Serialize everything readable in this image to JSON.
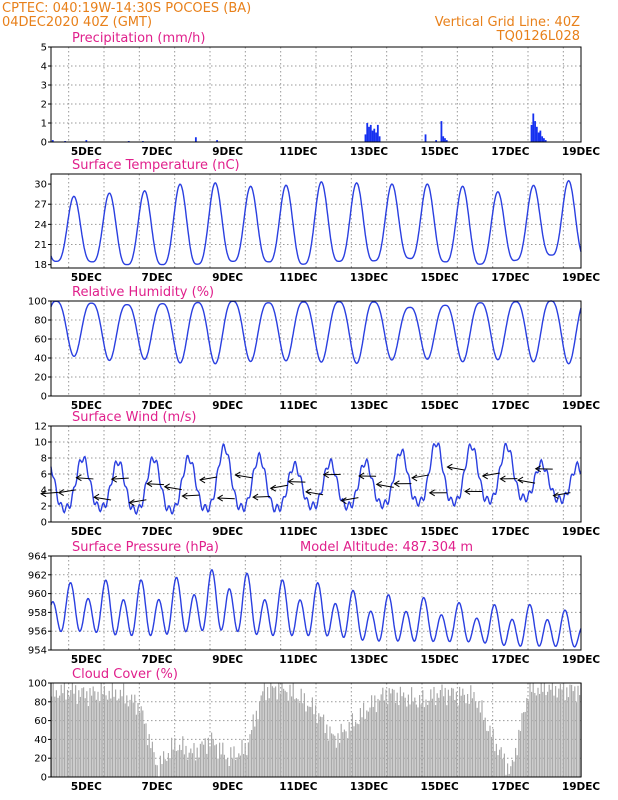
{
  "header": {
    "line1_left": "CPTEC:   040:19W-14:30S   POCOES (BA)",
    "line2_left": "04DEC2020 40Z (GMT)",
    "line1_right": "Vertical Grid Line: 40Z",
    "line2_right": "TQ0126L028"
  },
  "date_labels": [
    "5DEC",
    "7DEC",
    "9DEC",
    "11DEC",
    "13DEC",
    "15DEC",
    "17DEC",
    "19DEC"
  ],
  "colors": {
    "header": "#e8801a",
    "panel_title": "#e0208c",
    "series": "#2a3fe0",
    "bars": "#1530f0",
    "cloud": "#aaaaaa"
  },
  "chart_data": [
    {
      "id": "precip",
      "type": "bar",
      "title": "Precipitation (mm/h)",
      "ylim": [
        0,
        5
      ],
      "yticks": [
        0,
        1,
        2,
        3,
        4,
        5
      ],
      "x_range_days": [
        4,
        19
      ],
      "x": [
        4.05,
        4.4,
        5.0,
        6.2,
        6.6,
        8.1,
        8.7,
        12.9,
        12.95,
        13.0,
        13.05,
        13.1,
        13.15,
        13.2,
        13.25,
        13.3,
        14.6,
        14.9,
        15.05,
        15.1,
        15.15,
        15.2,
        17.6,
        17.65,
        17.7,
        17.75,
        17.8,
        17.85,
        17.9,
        17.95,
        18.0
      ],
      "values": [
        0.1,
        0.05,
        0.1,
        0.05,
        0.05,
        0.25,
        0.1,
        0.4,
        1.0,
        0.8,
        0.9,
        0.6,
        0.7,
        0.5,
        0.9,
        0.3,
        0.4,
        0.1,
        1.1,
        0.3,
        0.2,
        0.1,
        0.9,
        1.5,
        1.1,
        0.8,
        0.5,
        0.6,
        0.3,
        0.2,
        0.1
      ]
    },
    {
      "id": "temp",
      "type": "line",
      "title": "Surface Temperature (nC)",
      "ylim": [
        17.5,
        31.5
      ],
      "yticks": [
        18,
        21,
        24,
        27,
        30
      ],
      "x_range_days": [
        4,
        19
      ],
      "diurnal": {
        "min_day": [
          4,
          5,
          6,
          7,
          8,
          9,
          10,
          11,
          12,
          13,
          14,
          15,
          16,
          17,
          18,
          19
        ],
        "min": [
          18.5,
          18.5,
          18.0,
          18.0,
          18.0,
          18.5,
          18.5,
          18.0,
          18.5,
          18.5,
          19.0,
          18.5,
          18.0,
          18.5,
          19.5,
          19.0
        ],
        "max_day": [
          4,
          5,
          6,
          7,
          8,
          9,
          10,
          11,
          12,
          13,
          14,
          15,
          16,
          17,
          18
        ],
        "max": [
          28.5,
          28.0,
          29.0,
          29.0,
          30.5,
          30.0,
          29.5,
          30.0,
          30.5,
          30.0,
          30.0,
          30.0,
          29.5,
          28.5,
          30.5
        ]
      }
    },
    {
      "id": "rh",
      "type": "line",
      "title": "Relative Humidity (%)",
      "ylim": [
        0,
        100
      ],
      "yticks": [
        0,
        20,
        40,
        60,
        80,
        100
      ],
      "x_range_days": [
        4,
        19
      ],
      "diurnal": {
        "max_day": [
          4,
          5,
          6,
          7,
          8,
          9,
          10,
          11,
          12,
          13,
          14,
          15,
          16,
          17,
          18,
          19
        ],
        "max": [
          100,
          98,
          96,
          97,
          98,
          100,
          98,
          99,
          99,
          100,
          93,
          95,
          98,
          99,
          100,
          100
        ],
        "min_day": [
          4,
          5,
          6,
          7,
          8,
          9,
          10,
          11,
          12,
          13,
          14,
          15,
          16,
          17,
          18
        ],
        "min": [
          45,
          40,
          36,
          40,
          32,
          35,
          37,
          37,
          35,
          34,
          40,
          38,
          35,
          40,
          34
        ]
      }
    },
    {
      "id": "wind",
      "type": "line",
      "title": "Surface Wind (m/s)",
      "ylim": [
        0,
        12
      ],
      "yticks": [
        0,
        2,
        4,
        6,
        8,
        10,
        12
      ],
      "x_range_days": [
        4,
        19
      ],
      "diurnal": {
        "max_day": [
          5,
          6,
          7,
          8,
          9,
          10,
          11,
          12,
          13,
          14,
          15,
          16,
          17,
          18
        ],
        "max": [
          8.0,
          7.5,
          8.0,
          8.0,
          9.5,
          8.0,
          7.0,
          7.5,
          7.5,
          9.0,
          10.0,
          9.5,
          9.5,
          7.0
        ],
        "min_day": [
          4,
          5,
          6,
          7,
          8,
          9,
          10,
          11,
          12,
          13,
          14,
          15,
          16,
          17,
          18,
          19
        ],
        "min": [
          1.5,
          2.0,
          1.5,
          1.5,
          1.5,
          2.0,
          1.5,
          2.0,
          2.0,
          2.0,
          2.5,
          2.5,
          2.5,
          3.0,
          3.0,
          2.5
        ]
      },
      "direction": "easterly (arrows point to the west)"
    },
    {
      "id": "pres",
      "type": "line",
      "title": "Surface Pressure (hPa)",
      "subtitle": "Model Altitude: 487.304 m",
      "ylim": [
        954,
        964
      ],
      "yticks": [
        954,
        956,
        958,
        960,
        962,
        964
      ],
      "x_range_days": [
        4,
        19
      ],
      "diurnal": {
        "peak_day": [
          4,
          5,
          6,
          7,
          8,
          9,
          10,
          11,
          12,
          13,
          14,
          15,
          16,
          17,
          18,
          19
        ],
        "peak": [
          960.5,
          961.0,
          961.0,
          961.0,
          961.5,
          962.5,
          961.0,
          961.0,
          960.5,
          959.5,
          959.5,
          959.0,
          958.5,
          958.5,
          958.5,
          957.5
        ],
        "trough_day": [
          4,
          5,
          6,
          7,
          8,
          9,
          10,
          11,
          12,
          13,
          14,
          15,
          16,
          17,
          18
        ],
        "trough": [
          955.5,
          955.5,
          955.0,
          955.0,
          955.5,
          955.5,
          955.0,
          955.0,
          955.0,
          954.5,
          954.5,
          954.5,
          954.5,
          954.0,
          954.0
        ]
      }
    },
    {
      "id": "cloud",
      "type": "bar",
      "title": "Cloud Cover (%)",
      "ylim": [
        0,
        100
      ],
      "yticks": [
        0,
        20,
        40,
        60,
        80,
        100
      ],
      "x_range_days": [
        4,
        19
      ],
      "x": [
        4.0,
        4.5,
        5.0,
        5.5,
        6.0,
        6.5,
        7.0,
        7.5,
        8.0,
        8.5,
        9.0,
        9.5,
        10.0,
        10.5,
        11.0,
        11.5,
        12.0,
        12.5,
        13.0,
        13.5,
        14.0,
        14.5,
        15.0,
        15.5,
        16.0,
        16.5,
        17.0,
        17.5,
        18.0,
        18.5,
        19.0
      ],
      "values": [
        90,
        92,
        88,
        90,
        88,
        75,
        10,
        35,
        25,
        40,
        20,
        30,
        92,
        95,
        85,
        70,
        40,
        55,
        75,
        90,
        85,
        80,
        90,
        88,
        85,
        40,
        5,
        92,
        95,
        93,
        92
      ]
    }
  ]
}
